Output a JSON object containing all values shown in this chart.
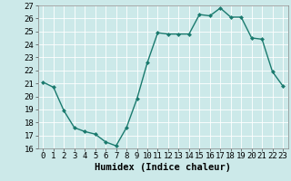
{
  "x": [
    0,
    1,
    2,
    3,
    4,
    5,
    6,
    7,
    8,
    9,
    10,
    11,
    12,
    13,
    14,
    15,
    16,
    17,
    18,
    19,
    20,
    21,
    22,
    23
  ],
  "y": [
    21.1,
    20.7,
    18.9,
    17.6,
    17.3,
    17.1,
    16.5,
    16.2,
    17.6,
    19.8,
    22.6,
    24.9,
    24.8,
    24.8,
    24.8,
    26.3,
    26.2,
    26.8,
    26.1,
    26.1,
    24.5,
    24.4,
    21.9,
    20.8
  ],
  "line_color": "#1a7a6e",
  "marker": "D",
  "marker_size": 2.5,
  "bg_color": "#cce9e9",
  "grid_color": "#ffffff",
  "xlabel": "Humidex (Indice chaleur)",
  "xlim": [
    -0.5,
    23.5
  ],
  "ylim": [
    16,
    27
  ],
  "yticks": [
    16,
    17,
    18,
    19,
    20,
    21,
    22,
    23,
    24,
    25,
    26,
    27
  ],
  "xticks": [
    0,
    1,
    2,
    3,
    4,
    5,
    6,
    7,
    8,
    9,
    10,
    11,
    12,
    13,
    14,
    15,
    16,
    17,
    18,
    19,
    20,
    21,
    22,
    23
  ],
  "xlabel_fontsize": 7.5,
  "tick_fontsize": 6.5
}
